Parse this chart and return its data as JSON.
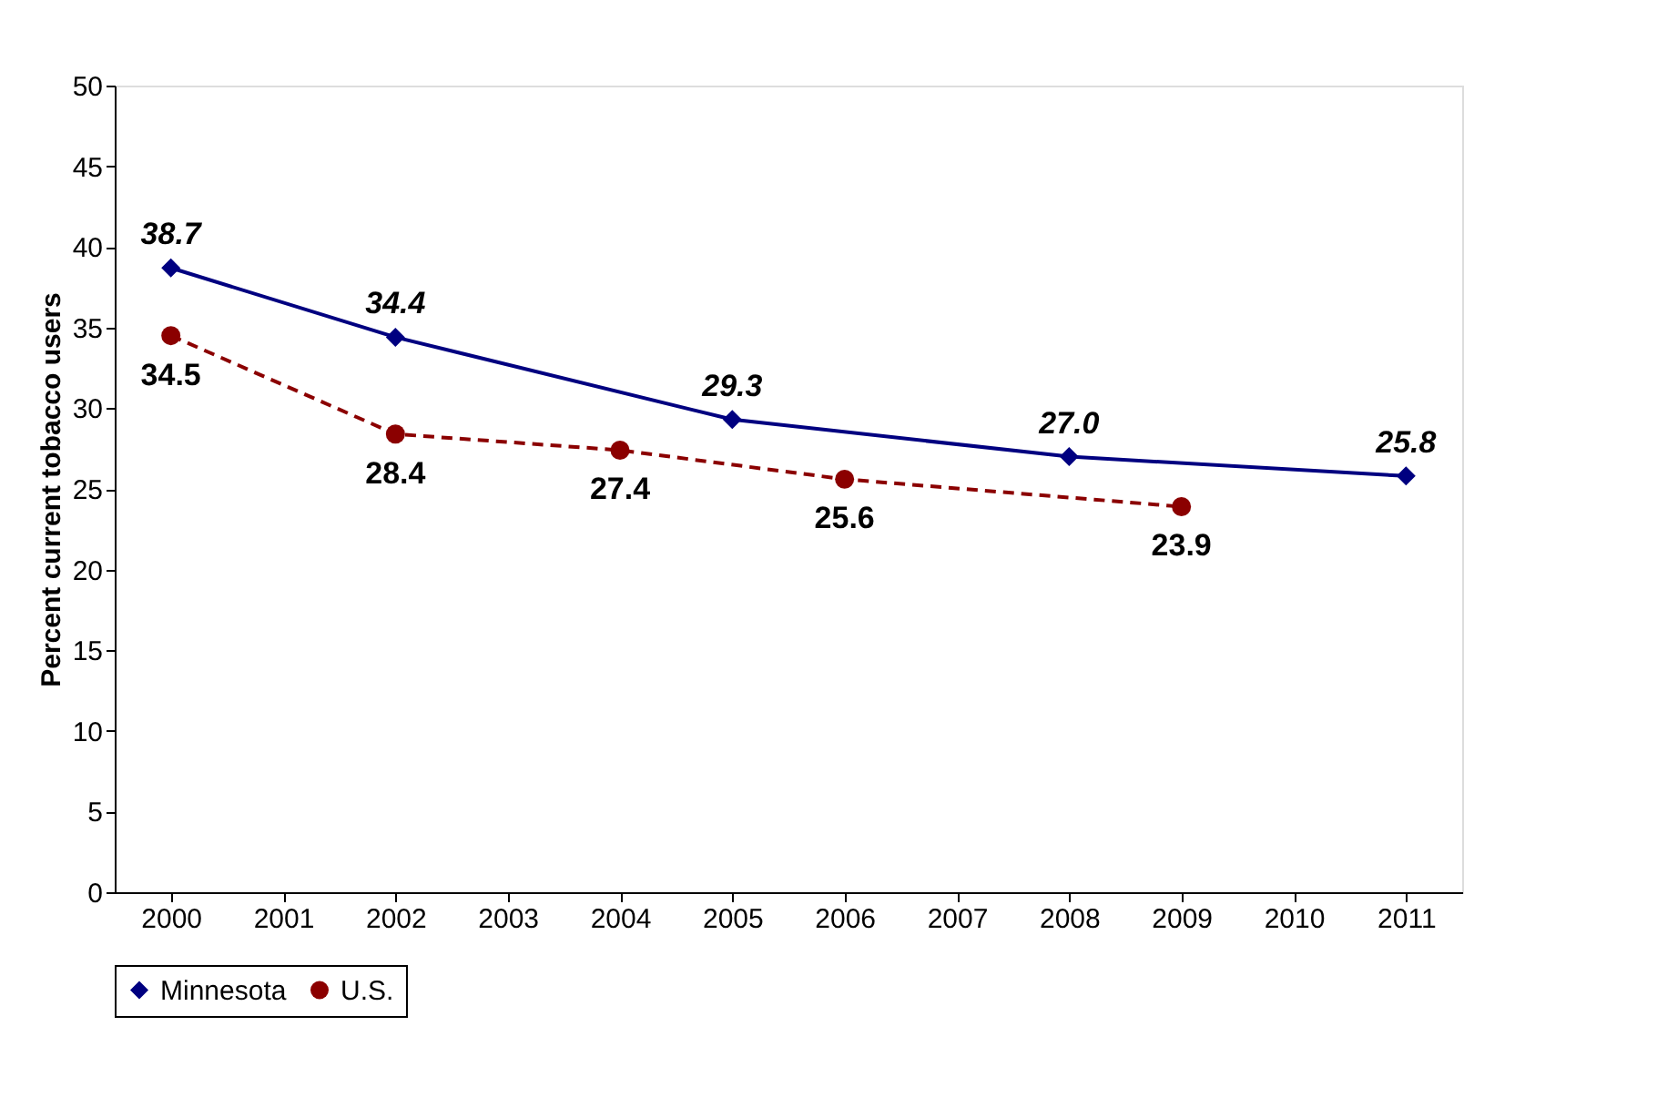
{
  "chart_data": {
    "type": "line",
    "ylabel": "Percent current tobacco users",
    "categories": [
      "2000",
      "2001",
      "2002",
      "2003",
      "2004",
      "2005",
      "2006",
      "2007",
      "2008",
      "2009",
      "2010",
      "2011"
    ],
    "series": [
      {
        "name": "Minnesota",
        "color": "#000080",
        "marker": "diamond",
        "line_style": "solid",
        "values": [
          38.7,
          null,
          34.4,
          null,
          null,
          29.3,
          null,
          null,
          27.0,
          null,
          null,
          25.8
        ],
        "value_labels": [
          "38.7",
          null,
          "34.4",
          null,
          null,
          "29.3",
          null,
          null,
          "27.0",
          null,
          null,
          "25.8"
        ]
      },
      {
        "name": "U.S.",
        "color": "#8b0000",
        "marker": "circle",
        "line_style": "dashed",
        "values": [
          34.5,
          null,
          28.4,
          null,
          27.4,
          null,
          25.6,
          null,
          null,
          23.9,
          null,
          null
        ],
        "value_labels": [
          "34.5",
          null,
          "28.4",
          null,
          "27.4",
          null,
          "25.6",
          null,
          null,
          "23.9",
          null,
          null
        ]
      }
    ],
    "ylim": [
      0,
      50
    ],
    "yticks": [
      0,
      5,
      10,
      15,
      20,
      25,
      30,
      35,
      40,
      45,
      50
    ],
    "grid": false,
    "legend": "bottom"
  }
}
